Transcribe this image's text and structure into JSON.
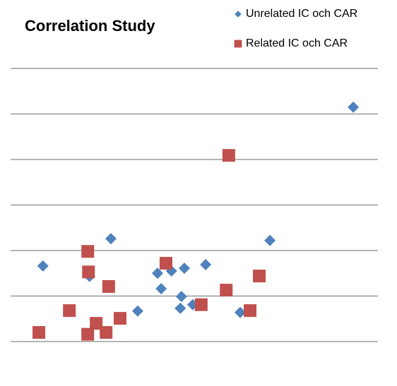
{
  "chart_data": {
    "type": "scatter",
    "title": "Correlation Study",
    "xlim": [
      0,
      10
    ],
    "ylim": [
      0,
      6
    ],
    "yticks": [
      0,
      1,
      2,
      3,
      4,
      5,
      6
    ],
    "grid": true,
    "series": [
      {
        "name": "Unrelated IC och CAR",
        "color": "#4f81bd",
        "marker": "diamond",
        "x": [
          0.88,
          2.15,
          2.73,
          3.46,
          4.0,
          4.1,
          4.38,
          4.62,
          4.65,
          4.73,
          4.96,
          5.31,
          6.25,
          7.06,
          9.33
        ],
        "values": [
          1.66,
          1.43,
          2.26,
          0.67,
          1.5,
          1.16,
          1.55,
          0.73,
          0.99,
          1.61,
          0.81,
          1.69,
          0.64,
          2.22,
          5.15
        ]
      },
      {
        "name": "Related IC och CAR",
        "color": "#c0504d",
        "marker": "square",
        "x": [
          0.77,
          1.6,
          2.1,
          2.12,
          2.1,
          2.33,
          2.6,
          2.67,
          2.98,
          4.23,
          5.19,
          5.87,
          5.94,
          6.52,
          6.77
        ],
        "values": [
          0.2,
          0.68,
          1.98,
          1.53,
          0.16,
          0.4,
          0.2,
          1.21,
          0.51,
          1.72,
          0.81,
          1.13,
          4.09,
          0.68,
          1.44
        ]
      }
    ]
  }
}
